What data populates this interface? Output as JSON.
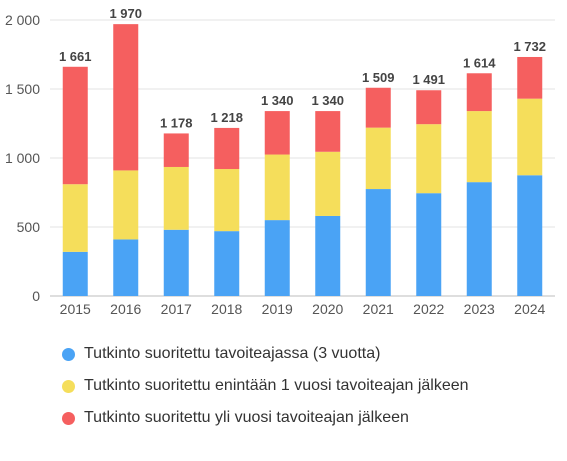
{
  "chart_data": {
    "type": "bar",
    "stacked": true,
    "categories": [
      "2015",
      "2016",
      "2017",
      "2018",
      "2019",
      "2020",
      "2021",
      "2022",
      "2023",
      "2024"
    ],
    "series": [
      {
        "name": "Tutkinto suoritettu tavoiteajassa (3 vuotta)",
        "color": "#4aa3f5",
        "values": [
          320,
          410,
          480,
          470,
          550,
          580,
          775,
          745,
          825,
          875
        ]
      },
      {
        "name": "Tutkinto suoritettu enintään 1 vuosi tavoiteajan jälkeen",
        "color": "#f5de5b",
        "values": [
          490,
          500,
          455,
          450,
          475,
          465,
          445,
          500,
          515,
          555
        ]
      },
      {
        "name": "Tutkinto suoritettu yli vuosi tavoiteajan jälkeen",
        "color": "#f55f5f",
        "values": [
          851,
          1060,
          243,
          298,
          315,
          295,
          289,
          246,
          274,
          302
        ]
      }
    ],
    "totals": [
      "1 661",
      "1 970",
      "1 178",
      "1 218",
      "1 340",
      "1 340",
      "1 509",
      "1 491",
      "1 614",
      "1 732"
    ],
    "y_ticks": [
      0,
      500,
      1000,
      1500,
      2000
    ],
    "y_tick_labels": [
      "0",
      "500",
      "1 000",
      "1 500",
      "2 000"
    ],
    "ylim": [
      0,
      2000
    ],
    "grid": true,
    "legend": "bottom",
    "title": "",
    "xlabel": "",
    "ylabel": ""
  }
}
